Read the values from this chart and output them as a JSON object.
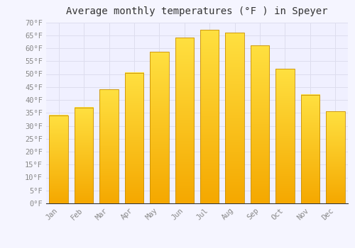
{
  "title": "Average monthly temperatures (°F ) in Speyer",
  "months": [
    "Jan",
    "Feb",
    "Mar",
    "Apr",
    "May",
    "Jun",
    "Jul",
    "Aug",
    "Sep",
    "Oct",
    "Nov",
    "Dec"
  ],
  "values": [
    34,
    37,
    44,
    50.5,
    58.5,
    64,
    67,
    66,
    61,
    52,
    42,
    35.5
  ],
  "bar_color_bottom": "#F5A800",
  "bar_color_top": "#FFE040",
  "bar_edge_color": "#C8900A",
  "background_color": "#F5F5FF",
  "plot_bg_color": "#F0F0FF",
  "grid_color": "#DDDDEE",
  "ylim": [
    0,
    70
  ],
  "yticks": [
    0,
    5,
    10,
    15,
    20,
    25,
    30,
    35,
    40,
    45,
    50,
    55,
    60,
    65,
    70
  ],
  "ylabel_suffix": "°F",
  "title_fontsize": 10,
  "tick_fontsize": 7.5,
  "font_family": "monospace",
  "bar_width": 0.75
}
